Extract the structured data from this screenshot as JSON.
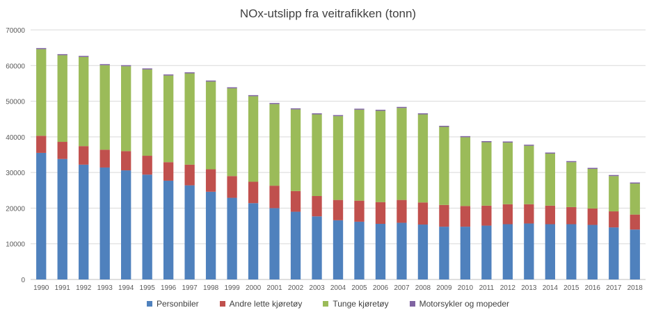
{
  "chart_data": {
    "type": "bar",
    "stacked": true,
    "title": "NOx-utslipp fra veitrafikken (tonn)",
    "xlabel": "",
    "ylabel": "",
    "ylim": [
      0,
      70000
    ],
    "yticks": [
      0,
      10000,
      20000,
      30000,
      40000,
      50000,
      60000,
      70000
    ],
    "ytick_labels": [
      "0",
      "10000",
      "20000",
      "30000",
      "40000",
      "50000",
      "60000",
      "70000"
    ],
    "grid": true,
    "legend_position": "bottom",
    "categories": [
      "1990",
      "1991",
      "1992",
      "1993",
      "1994",
      "1995",
      "1996",
      "1997",
      "1998",
      "1999",
      "2000",
      "2001",
      "2002",
      "2003",
      "2004",
      "2005",
      "2006",
      "2007",
      "2008",
      "2009",
      "2010",
      "2011",
      "2012",
      "2013",
      "2014",
      "2015",
      "2016",
      "2017",
      "2018"
    ],
    "series": [
      {
        "name": "Personbiler",
        "color": "#4f81bd",
        "values": [
          35500,
          33800,
          32200,
          31400,
          30600,
          29400,
          27700,
          26400,
          24600,
          22900,
          21400,
          20000,
          19000,
          17700,
          16600,
          16200,
          15600,
          15900,
          15400,
          14800,
          14800,
          15100,
          15500,
          15700,
          15500,
          15500,
          15300,
          14600,
          14000
        ]
      },
      {
        "name": "Andre lette kjøretøy",
        "color": "#c0504d",
        "values": [
          4800,
          4800,
          5200,
          5000,
          5400,
          5300,
          5200,
          5800,
          6300,
          6100,
          6000,
          6300,
          5800,
          5700,
          5700,
          5900,
          6100,
          6400,
          6200,
          6100,
          5800,
          5600,
          5600,
          5400,
          5200,
          4800,
          4600,
          4500,
          4200
        ]
      },
      {
        "name": "Tunge kjøretøy",
        "color": "#9bbb59",
        "values": [
          24300,
          24300,
          25000,
          23700,
          23800,
          24200,
          24300,
          25600,
          24600,
          24600,
          24000,
          22900,
          22900,
          22900,
          23500,
          25500,
          25600,
          25800,
          24700,
          21900,
          19300,
          17800,
          17300,
          16400,
          14600,
          12600,
          11100,
          9900,
          8700
        ]
      },
      {
        "name": "Motorsykler og mopeder",
        "color": "#8064a2",
        "values": [
          300,
          300,
          300,
          300,
          300,
          300,
          300,
          300,
          300,
          300,
          300,
          300,
          300,
          300,
          300,
          300,
          300,
          300,
          300,
          300,
          300,
          300,
          300,
          300,
          300,
          300,
          300,
          300,
          300
        ]
      }
    ]
  }
}
